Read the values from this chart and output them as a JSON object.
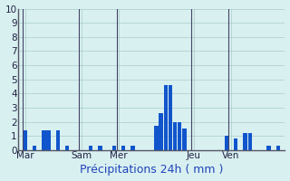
{
  "title": "",
  "xlabel": "Précipitations 24h ( mm )",
  "ylim": [
    0,
    10
  ],
  "yticks": [
    0,
    1,
    2,
    3,
    4,
    5,
    6,
    7,
    8,
    9,
    10
  ],
  "background_color": "#d8f0f0",
  "bar_color": "#1155cc",
  "bar_width": 0.85,
  "values": [
    0,
    1.4,
    0,
    0.3,
    0,
    1.4,
    1.4,
    0,
    1.4,
    0,
    0.3,
    0,
    0,
    0,
    0,
    0.3,
    0,
    0.3,
    0,
    0,
    0.3,
    0,
    0.3,
    0,
    0.3,
    0,
    0,
    0,
    0,
    1.7,
    2.6,
    4.6,
    4.6,
    2.0,
    2.0,
    1.5,
    0,
    0,
    0,
    0,
    0,
    0,
    0,
    0,
    1.0,
    0,
    0.8,
    0,
    1.2,
    1.2,
    0,
    0,
    0,
    0.3,
    0,
    0.3,
    0
  ],
  "x_tick_positions": [
    1,
    13,
    21,
    37,
    45
  ],
  "x_tick_labels": [
    "Mar",
    "Sam",
    "Mer",
    "Jeu",
    "Ven"
  ],
  "day_line_positions": [
    0.5,
    12.5,
    20.5,
    36.5,
    44.5
  ],
  "xlabel_fontsize": 9,
  "tick_fontsize": 7.5,
  "fig_bg_color": "#d8f0f0",
  "grid_color": "#aacccc",
  "spine_color": "#555566"
}
